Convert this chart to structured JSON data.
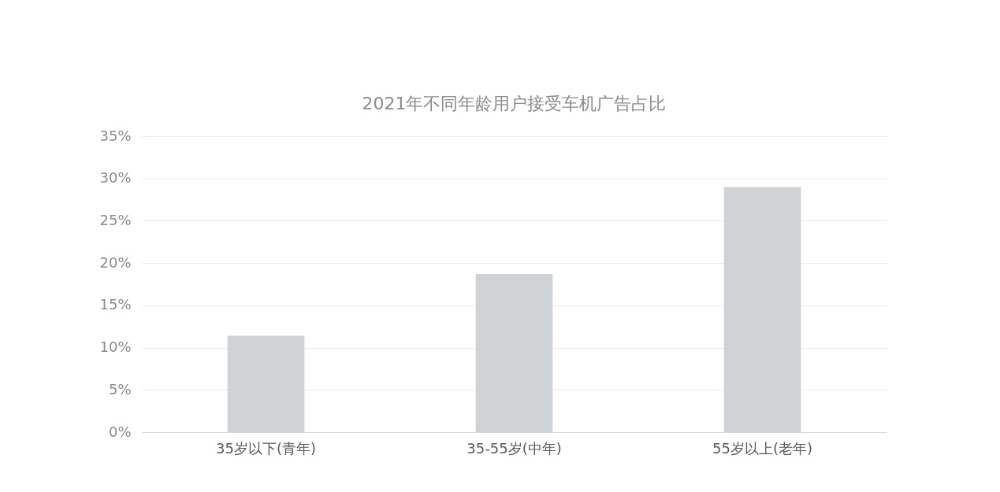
{
  "chart_data": {
    "type": "bar",
    "title": "2021年不同年龄用户接受车机广告占比",
    "categories": [
      "35岁以下(青年)",
      "35-55岁(中年)",
      "55岁以上(老年)"
    ],
    "values": [
      11.4,
      18.7,
      29.0
    ],
    "color": "#d0d3d6",
    "ylim": [
      0,
      35
    ],
    "yticks": [
      {
        "value": 0,
        "label": "0%"
      },
      {
        "value": 5,
        "label": "5%"
      },
      {
        "value": 10,
        "label": "10%"
      },
      {
        "value": 15,
        "label": "15%"
      },
      {
        "value": 20,
        "label": "20%"
      },
      {
        "value": 25,
        "label": "25%"
      },
      {
        "value": 30,
        "label": "30%"
      },
      {
        "value": 35,
        "label": "35%"
      }
    ],
    "grid": "y"
  }
}
